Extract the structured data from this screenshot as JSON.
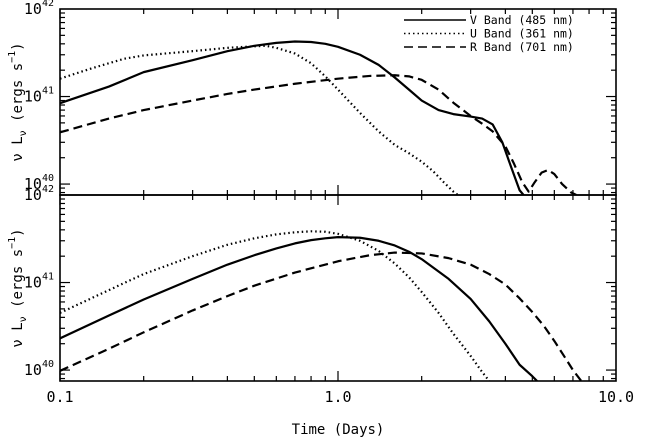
{
  "chart_data": [
    {
      "type": "line",
      "panel": "top",
      "xscale": "log",
      "yscale": "log",
      "xlim": [
        0.1,
        10.0
      ],
      "ylim": [
        7.5e+39,
        1e+42
      ],
      "yticks": [
        {
          "base": "10",
          "exp": "40"
        },
        {
          "base": "10",
          "exp": "41"
        },
        {
          "base": "10",
          "exp": "42"
        }
      ],
      "ylabel": {
        "prefix": "ν L",
        "sub": "ν",
        "units": " (ergs s",
        "sup": "−1",
        "close": ")"
      },
      "legend": {
        "placement": "top-right",
        "entries": [
          "V Band (485 nm)",
          "U Band (361 nm)",
          "R Band (701 nm)"
        ]
      },
      "series": [
        {
          "name": "V Band (485 nm)",
          "line_style": "solid",
          "points": [
            [
              0.1,
              8.4e+40
            ],
            [
              0.15,
              1.3e+41
            ],
            [
              0.2,
              1.9e+41
            ],
            [
              0.3,
              2.6e+41
            ],
            [
              0.4,
              3.3e+41
            ],
            [
              0.5,
              3.8e+41
            ],
            [
              0.6,
              4.1e+41
            ],
            [
              0.7,
              4.25e+41
            ],
            [
              0.8,
              4.2e+41
            ],
            [
              0.9,
              4e+41
            ],
            [
              1.0,
              3.7e+41
            ],
            [
              1.2,
              3e+41
            ],
            [
              1.4,
              2.3e+41
            ],
            [
              1.6,
              1.65e+41
            ],
            [
              1.8,
              1.2e+41
            ],
            [
              2.0,
              9e+40
            ],
            [
              2.3,
              7e+40
            ],
            [
              2.6,
              6.3e+40
            ],
            [
              3.0,
              5.9e+40
            ],
            [
              3.3,
              5.6e+40
            ],
            [
              3.6,
              4.8e+40
            ],
            [
              3.9,
              3e+40
            ],
            [
              4.2,
              1.55e+40
            ],
            [
              4.5,
              8.5e+39
            ],
            [
              4.65,
              7.5e+39
            ]
          ]
        },
        {
          "name": "U Band (361 nm)",
          "line_style": "dotted",
          "points": [
            [
              0.1,
              1.6e+41
            ],
            [
              0.13,
              2.1e+41
            ],
            [
              0.17,
              2.7e+41
            ],
            [
              0.2,
              2.95e+41
            ],
            [
              0.3,
              3.3e+41
            ],
            [
              0.4,
              3.6e+41
            ],
            [
              0.5,
              3.75e+41
            ],
            [
              0.55,
              3.8e+41
            ],
            [
              0.6,
              3.6e+41
            ],
            [
              0.7,
              3.1e+41
            ],
            [
              0.8,
              2.4e+41
            ],
            [
              0.9,
              1.7e+41
            ],
            [
              1.0,
              1.2e+41
            ],
            [
              1.2,
              6.5e+40
            ],
            [
              1.4,
              4e+40
            ],
            [
              1.6,
              2.8e+40
            ],
            [
              1.8,
              2.25e+40
            ],
            [
              2.0,
              1.8e+40
            ],
            [
              2.2,
              1.4e+40
            ],
            [
              2.4,
              1.05e+40
            ],
            [
              2.6,
              8.2e+39
            ],
            [
              2.7,
              7.5e+39
            ]
          ]
        },
        {
          "name": "R Band (701 nm)",
          "line_style": "dashed",
          "points": [
            [
              0.1,
              3.9e+40
            ],
            [
              0.15,
              5.6e+40
            ],
            [
              0.2,
              7e+40
            ],
            [
              0.3,
              9e+40
            ],
            [
              0.4,
              1.07e+41
            ],
            [
              0.5,
              1.2e+41
            ],
            [
              0.7,
              1.4e+41
            ],
            [
              1.0,
              1.6e+41
            ],
            [
              1.3,
              1.72e+41
            ],
            [
              1.6,
              1.75e+41
            ],
            [
              1.8,
              1.7e+41
            ],
            [
              2.0,
              1.55e+41
            ],
            [
              2.3,
              1.2e+41
            ],
            [
              2.6,
              8.5e+40
            ],
            [
              3.0,
              6e+40
            ],
            [
              3.3,
              4.9e+40
            ],
            [
              3.6,
              4e+40
            ],
            [
              4.0,
              2.7e+40
            ],
            [
              4.3,
              1.7e+40
            ],
            [
              4.6,
              1.05e+40
            ],
            [
              4.85,
              8.2e+39
            ],
            [
              5.1,
              1.05e+40
            ],
            [
              5.4,
              1.35e+40
            ],
            [
              5.7,
              1.45e+40
            ],
            [
              6.0,
              1.3e+40
            ],
            [
              6.4,
              1e+40
            ],
            [
              6.9,
              8e+39
            ],
            [
              7.2,
              7.5e+39
            ]
          ]
        }
      ]
    },
    {
      "type": "line",
      "panel": "bottom",
      "xscale": "log",
      "yscale": "log",
      "xlim": [
        0.1,
        10.0
      ],
      "ylim": [
        7.5e+39,
        1e+42
      ],
      "xticks": [
        "0.1",
        "1.0",
        "10.0"
      ],
      "xlabel": "Time (Days)",
      "yticks": [
        {
          "base": "10",
          "exp": "40"
        },
        {
          "base": "10",
          "exp": "41"
        },
        {
          "base": "10",
          "exp": "42"
        }
      ],
      "ylabel": {
        "prefix": "ν L",
        "sub": "ν",
        "units": " (ergs s",
        "sup": "−1",
        "close": ")"
      },
      "series": [
        {
          "name": "V Band (485 nm)",
          "line_style": "solid",
          "points": [
            [
              0.1,
              2.3e+40
            ],
            [
              0.15,
              4.2e+40
            ],
            [
              0.2,
              6.4e+40
            ],
            [
              0.3,
              1.1e+41
            ],
            [
              0.4,
              1.6e+41
            ],
            [
              0.5,
              2.05e+41
            ],
            [
              0.6,
              2.45e+41
            ],
            [
              0.7,
              2.8e+41
            ],
            [
              0.8,
              3.05e+41
            ],
            [
              0.9,
              3.2e+41
            ],
            [
              1.0,
              3.3e+41
            ],
            [
              1.2,
              3.25e+41
            ],
            [
              1.4,
              3e+41
            ],
            [
              1.6,
              2.65e+41
            ],
            [
              1.8,
              2.25e+41
            ],
            [
              2.0,
              1.85e+41
            ],
            [
              2.5,
              1.1e+41
            ],
            [
              3.0,
              6.5e+40
            ],
            [
              3.5,
              3.6e+40
            ],
            [
              4.0,
              2e+40
            ],
            [
              4.5,
              1.15e+40
            ],
            [
              5.0,
              8.5e+39
            ],
            [
              5.2,
              7.5e+39
            ]
          ]
        },
        {
          "name": "U Band (361 nm)",
          "line_style": "dotted",
          "points": [
            [
              0.1,
              4.5e+40
            ],
            [
              0.15,
              8.2e+40
            ],
            [
              0.2,
              1.25e+41
            ],
            [
              0.3,
              2e+41
            ],
            [
              0.4,
              2.7e+41
            ],
            [
              0.5,
              3.2e+41
            ],
            [
              0.6,
              3.55e+41
            ],
            [
              0.7,
              3.75e+41
            ],
            [
              0.8,
              3.85e+41
            ],
            [
              0.9,
              3.8e+41
            ],
            [
              1.0,
              3.6e+41
            ],
            [
              1.2,
              3e+41
            ],
            [
              1.4,
              2.3e+41
            ],
            [
              1.6,
              1.65e+41
            ],
            [
              1.8,
              1.15e+41
            ],
            [
              2.0,
              7.8e+40
            ],
            [
              2.3,
              4.5e+40
            ],
            [
              2.6,
              2.6e+40
            ],
            [
              3.0,
              1.45e+40
            ],
            [
              3.3,
              9.5e+39
            ],
            [
              3.5,
              7.5e+39
            ]
          ]
        },
        {
          "name": "R Band (701 nm)",
          "line_style": "dashed",
          "points": [
            [
              0.1,
              9.8e+39
            ],
            [
              0.15,
              1.75e+40
            ],
            [
              0.2,
              2.7e+40
            ],
            [
              0.3,
              4.8e+40
            ],
            [
              0.4,
              7e+40
            ],
            [
              0.5,
              9.2e+40
            ],
            [
              0.7,
              1.3e+41
            ],
            [
              1.0,
              1.75e+41
            ],
            [
              1.3,
              2.05e+41
            ],
            [
              1.6,
              2.2e+41
            ],
            [
              2.0,
              2.15e+41
            ],
            [
              2.5,
              1.9e+41
            ],
            [
              3.0,
              1.6e+41
            ],
            [
              3.5,
              1.25e+41
            ],
            [
              4.0,
              9.5e+40
            ],
            [
              4.5,
              6.6e+40
            ],
            [
              5.0,
              4.6e+40
            ],
            [
              5.5,
              3.2e+40
            ],
            [
              6.0,
              2.15e+40
            ],
            [
              6.5,
              1.45e+40
            ],
            [
              7.0,
              1e+40
            ],
            [
              7.5,
              7.5e+39
            ]
          ]
        }
      ]
    }
  ]
}
